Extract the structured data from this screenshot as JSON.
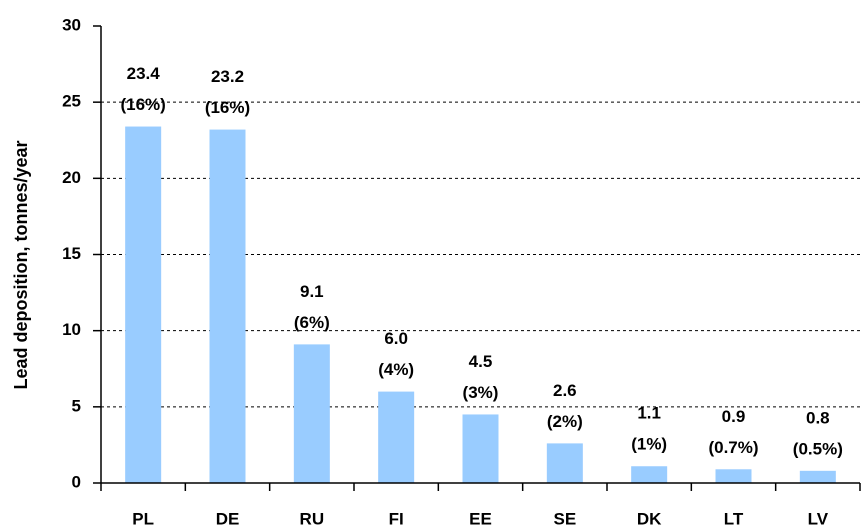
{
  "chart_data": {
    "type": "bar",
    "y_label": "Lead deposition, tonnes/year",
    "categories": [
      "PL",
      "DE",
      "RU",
      "FI",
      "EE",
      "SE",
      "DK",
      "LT",
      "LV"
    ],
    "values": [
      23.4,
      23.2,
      9.1,
      6.0,
      4.5,
      2.6,
      1.1,
      0.9,
      0.8
    ],
    "value_labels": [
      "23.4",
      "23.2",
      "9.1",
      "6.0",
      "4.5",
      "2.6",
      "1.1",
      "0.9",
      "0.8"
    ],
    "share_labels": [
      "(16%)",
      "(16%)",
      "(6%)",
      "(4%)",
      "(3%)",
      "(2%)",
      "(1%)",
      "(0.7%)",
      "(0.5%)"
    ],
    "color": "#99ccff",
    "ylim": [
      0,
      30
    ],
    "yticks": [
      0,
      5,
      10,
      15,
      20,
      25,
      30
    ],
    "grid": true
  }
}
